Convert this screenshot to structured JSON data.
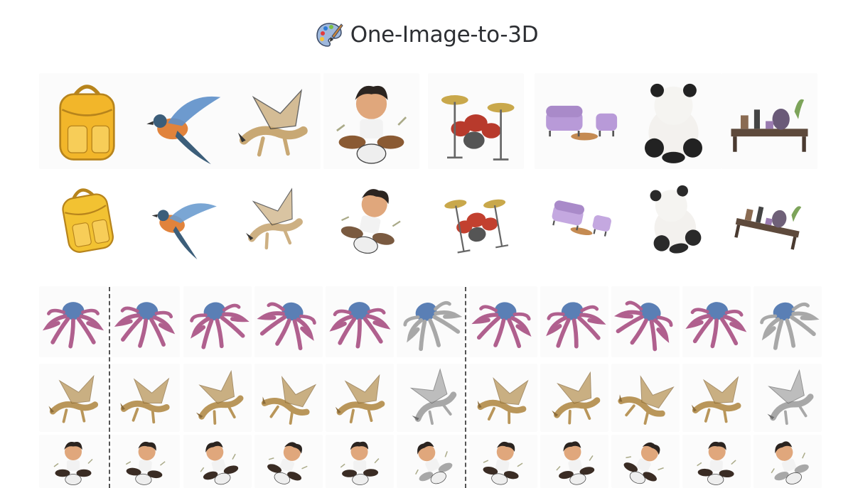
{
  "header": {
    "title": "One-Image-to-3D",
    "icon": "artist-palette-icon"
  },
  "gallery": {
    "row1": [
      {
        "subject": "backpack",
        "icon": "backpack-icon",
        "color": "#f2b62a"
      },
      {
        "subject": "bird",
        "icon": "bird-icon",
        "color": "#5d8fc9"
      },
      {
        "subject": "dragon",
        "icon": "dragon-icon",
        "color": "#c8a874"
      },
      {
        "subject": "drummer-boy",
        "icon": "drummer-icon",
        "color": "#8a5a33"
      },
      {
        "subject": "drum-kit",
        "icon": "drum-kit-icon",
        "color": "#b83a2c"
      },
      {
        "subject": "sofa-set",
        "icon": "sofa-icon",
        "color": "#b89ad8"
      },
      {
        "subject": "panda",
        "icon": "panda-icon",
        "color": "#222222"
      },
      {
        "subject": "desk",
        "icon": "desk-icon",
        "color": "#6a5a78"
      }
    ],
    "row2": [
      {
        "subject": "backpack",
        "icon": "backpack-icon",
        "color": "#f2c232"
      },
      {
        "subject": "bird",
        "icon": "bird-icon",
        "color": "#6b9ccf"
      },
      {
        "subject": "dragon",
        "icon": "dragon-icon",
        "color": "#cdb083"
      },
      {
        "subject": "drummer-boy",
        "icon": "drummer-icon",
        "color": "#7a5a40"
      },
      {
        "subject": "drum-kit",
        "icon": "drum-kit-icon",
        "color": "#c2402f"
      },
      {
        "subject": "sofa-set",
        "icon": "sofa-icon",
        "color": "#c4a8e0"
      },
      {
        "subject": "panda",
        "icon": "panda-icon",
        "color": "#2a2a2a"
      },
      {
        "subject": "desk",
        "icon": "desk-icon",
        "color": "#6f6078"
      }
    ]
  },
  "comparison": {
    "rows": [
      {
        "subject": "octopus",
        "icon": "octopus-icon",
        "color": "#b0608e",
        "alt": "#5a7fb5"
      },
      {
        "subject": "dragon",
        "icon": "dragon-icon",
        "color": "#b9965a",
        "alt": "#8a6b3a"
      },
      {
        "subject": "drummer-boy",
        "icon": "drummer-icon",
        "color": "#3a2c24",
        "alt": "#c79a6a"
      }
    ],
    "mesh_color": "#9a9a9a"
  }
}
